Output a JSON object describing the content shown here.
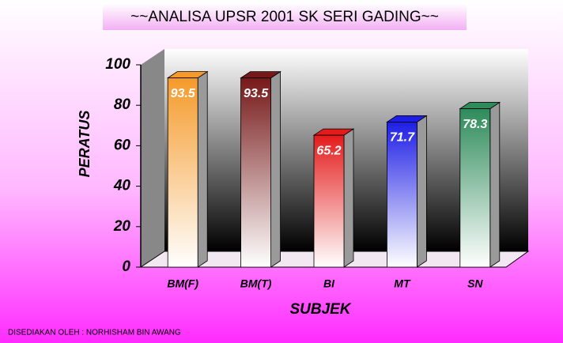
{
  "chart_data": {
    "type": "bar",
    "title": "~~ANALISA UPSR 2001 SK SERI GADING~~",
    "xlabel": "SUBJEK",
    "ylabel": "PERATUS",
    "footer": "DISEDIAKAN OLEH : NORHISHAM BIN AWANG",
    "categories": [
      "BM(F)",
      "BM(T)",
      "BI",
      "MT",
      "SN"
    ],
    "values": [
      93.5,
      93.5,
      65.2,
      71.7,
      78.3
    ],
    "colors": [
      "#f59a2a",
      "#761818",
      "#e41b1b",
      "#1e1ee6",
      "#2e8b5a"
    ],
    "ylim": [
      0,
      100
    ],
    "yticks": [
      0,
      20,
      40,
      60,
      80,
      100
    ],
    "grid": false
  }
}
